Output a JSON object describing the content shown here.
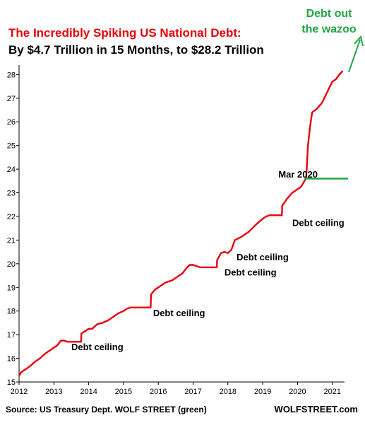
{
  "chart_data": {
    "type": "line",
    "title": "The Incredibly Spiking US National Debt:",
    "subtitle": "By $4.7 Trillion in 15 Months, to $28.2 Trillion",
    "x_ticks": [
      "2012",
      "2013",
      "2014",
      "2015",
      "2016",
      "2017",
      "2018",
      "2019",
      "2020",
      "2021"
    ],
    "y_ticks": [
      "15",
      "16",
      "17",
      "18",
      "19",
      "20",
      "21",
      "22",
      "23",
      "24",
      "25",
      "26",
      "27",
      "28"
    ],
    "xlim": [
      2012.0,
      2021.45
    ],
    "ylim": [
      15.0,
      28.4
    ],
    "grid": false,
    "series": [
      {
        "color": "#e8000b",
        "points": [
          [
            2012.0,
            15.25
          ],
          [
            2012.05,
            15.4
          ],
          [
            2012.15,
            15.5
          ],
          [
            2012.3,
            15.65
          ],
          [
            2012.45,
            15.85
          ],
          [
            2012.6,
            16.0
          ],
          [
            2012.75,
            16.2
          ],
          [
            2012.9,
            16.35
          ],
          [
            2013.0,
            16.45
          ],
          [
            2013.1,
            16.55
          ],
          [
            2013.2,
            16.75
          ],
          [
            2013.3,
            16.75
          ],
          [
            2013.4,
            16.7
          ],
          [
            2013.5,
            16.7
          ],
          [
            2013.6,
            16.7
          ],
          [
            2013.7,
            16.7
          ],
          [
            2013.78,
            16.7
          ],
          [
            2013.79,
            17.05
          ],
          [
            2013.9,
            17.15
          ],
          [
            2014.0,
            17.25
          ],
          [
            2014.1,
            17.25
          ],
          [
            2014.25,
            17.45
          ],
          [
            2014.4,
            17.5
          ],
          [
            2014.55,
            17.6
          ],
          [
            2014.7,
            17.75
          ],
          [
            2014.85,
            17.9
          ],
          [
            2015.0,
            18.0
          ],
          [
            2015.1,
            18.1
          ],
          [
            2015.2,
            18.15
          ],
          [
            2015.4,
            18.15
          ],
          [
            2015.6,
            18.15
          ],
          [
            2015.78,
            18.15
          ],
          [
            2015.79,
            18.7
          ],
          [
            2015.9,
            18.9
          ],
          [
            2016.05,
            19.05
          ],
          [
            2016.2,
            19.2
          ],
          [
            2016.4,
            19.3
          ],
          [
            2016.55,
            19.45
          ],
          [
            2016.7,
            19.6
          ],
          [
            2016.8,
            19.8
          ],
          [
            2016.9,
            19.95
          ],
          [
            2017.0,
            19.95
          ],
          [
            2017.1,
            19.9
          ],
          [
            2017.2,
            19.85
          ],
          [
            2017.4,
            19.85
          ],
          [
            2017.6,
            19.85
          ],
          [
            2017.68,
            19.85
          ],
          [
            2017.69,
            20.15
          ],
          [
            2017.8,
            20.45
          ],
          [
            2017.9,
            20.5
          ],
          [
            2018.0,
            20.45
          ],
          [
            2018.1,
            20.6
          ],
          [
            2018.2,
            21.0
          ],
          [
            2018.4,
            21.15
          ],
          [
            2018.6,
            21.35
          ],
          [
            2018.8,
            21.65
          ],
          [
            2019.0,
            21.9
          ],
          [
            2019.1,
            22.0
          ],
          [
            2019.2,
            22.05
          ],
          [
            2019.4,
            22.05
          ],
          [
            2019.5,
            22.05
          ],
          [
            2019.55,
            22.05
          ],
          [
            2019.56,
            22.45
          ],
          [
            2019.7,
            22.75
          ],
          [
            2019.85,
            23.0
          ],
          [
            2020.0,
            23.15
          ],
          [
            2020.1,
            23.25
          ],
          [
            2020.2,
            23.5
          ],
          [
            2020.25,
            23.65
          ],
          [
            2020.3,
            25.0
          ],
          [
            2020.36,
            25.8
          ],
          [
            2020.42,
            26.4
          ],
          [
            2020.55,
            26.55
          ],
          [
            2020.7,
            26.8
          ],
          [
            2020.8,
            27.1
          ],
          [
            2020.9,
            27.4
          ],
          [
            2021.0,
            27.7
          ],
          [
            2021.1,
            27.8
          ],
          [
            2021.2,
            28.0
          ],
          [
            2021.3,
            28.15
          ]
        ]
      },
      {
        "color": "#22a545",
        "points": [
          [
            2020.2,
            23.6
          ],
          [
            2021.45,
            23.6
          ]
        ]
      }
    ],
    "annotations": [
      {
        "text": "Debt ceiling",
        "x": 2013.5,
        "y": 16.35
      },
      {
        "text": "Debt ceiling",
        "x": 2015.85,
        "y": 17.78
      },
      {
        "text": "Debt ceiling",
        "x": 2017.9,
        "y": 19.5
      },
      {
        "text": "Debt ceiling",
        "x": 2018.25,
        "y": 20.15
      },
      {
        "text": "Debt ceiling",
        "x": 2019.85,
        "y": 21.6
      },
      {
        "text": "Mar 2020",
        "x": 2019.45,
        "y": 23.65,
        "color": "#22a545"
      }
    ],
    "callout": {
      "lines": [
        "Debt out",
        "the wazoo"
      ],
      "color": "#22a545"
    },
    "source": "Source: US Treasury Dept. WOLF STREET (green)",
    "site": "WOLFSTREET.com"
  }
}
